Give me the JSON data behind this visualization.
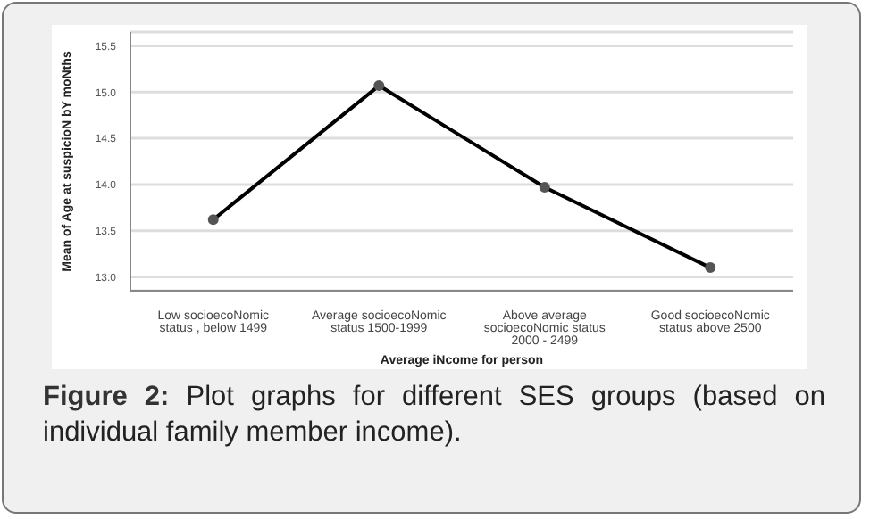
{
  "chart_data": {
    "type": "line",
    "categories": [
      "Low socioecoNomic status , below 1499",
      "Average socioecoNomic status 1500-1999",
      "Above average socioecoNomic status 2000 - 2499",
      "Good socioecoNomic status above 2500"
    ],
    "series": [
      {
        "color": "#000000",
        "values": [
          13.62,
          15.07,
          13.97,
          13.1
        ]
      }
    ],
    "xlabel": "Average iNcome for person",
    "ylabel": "Mean of Age at suspicioN bY moNths",
    "ylim": [
      12.85,
      15.65
    ],
    "yticks": [
      {
        "value": 13.0,
        "label": "13.0"
      },
      {
        "value": 13.5,
        "label": "13.5"
      },
      {
        "value": 14.0,
        "label": "14.0"
      },
      {
        "value": 14.5,
        "label": "14.5"
      },
      {
        "value": 15.0,
        "label": "15.0"
      },
      {
        "value": 15.5,
        "label": "15.5"
      }
    ],
    "grid": "y",
    "marker": "circle",
    "line_style": "solid",
    "annotations": [
      "Figure 2: Plot graphs for different SES groups (based on individual family member income)."
    ]
  }
}
